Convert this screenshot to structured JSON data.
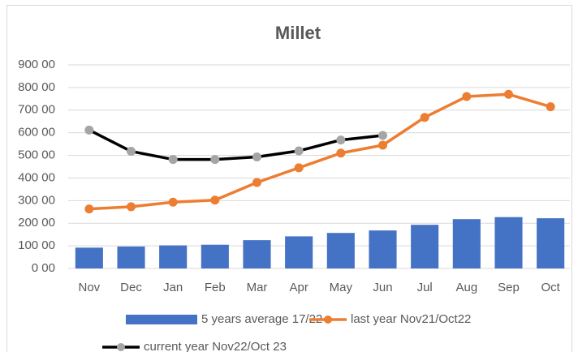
{
  "chart_data": {
    "type": "combo",
    "title": "Millet",
    "categories": [
      "Nov",
      "Dec",
      "Jan",
      "Feb",
      "Mar",
      "Apr",
      "May",
      "Jun",
      "Jul",
      "Aug",
      "Sep",
      "Oct"
    ],
    "series": [
      {
        "name": "5 years average 17/22",
        "type": "bar",
        "color": "#4472c4",
        "values": [
          92,
          97,
          102,
          105,
          125,
          142,
          157,
          168,
          193,
          218,
          227,
          222
        ]
      },
      {
        "name": "last year Nov21/Oct22",
        "type": "line",
        "color": "#ed7d31",
        "marker_color": "#ed7d31",
        "values": [
          263,
          273,
          293,
          302,
          380,
          445,
          510,
          545,
          668,
          760,
          770,
          715
        ]
      },
      {
        "name": "current year Nov22/Oct 23",
        "type": "line",
        "color": "#000000",
        "marker_color": "#a5a5a5",
        "values": [
          612,
          518,
          482,
          482,
          493,
          520,
          568,
          588,
          null,
          null,
          null,
          null
        ]
      }
    ],
    "ylim": [
      0,
      900
    ],
    "yticks": [
      {
        "value": 0,
        "label": "0 00"
      },
      {
        "value": 100,
        "label": "100 00"
      },
      {
        "value": 200,
        "label": "200 00"
      },
      {
        "value": 300,
        "label": "300 00"
      },
      {
        "value": 400,
        "label": "400 00"
      },
      {
        "value": 500,
        "label": "500 00"
      },
      {
        "value": 600,
        "label": "600 00"
      },
      {
        "value": 700,
        "label": "700 00"
      },
      {
        "value": 800,
        "label": "800 00"
      },
      {
        "value": 900,
        "label": "900 00"
      }
    ],
    "grid": true
  }
}
